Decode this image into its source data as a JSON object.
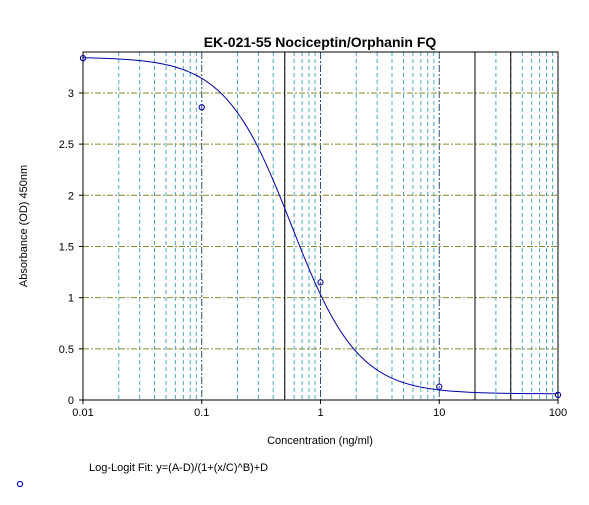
{
  "chart_data": {
    "type": "scatter",
    "title": "EK-021-55 Nociceptin/Orphanin FQ",
    "xlabel": "Concentration (ng/ml)",
    "ylabel": "Absorbance (OD) 450nm",
    "x_scale": "log",
    "xlim": [
      0.01,
      100
    ],
    "ylim": [
      0,
      3.4
    ],
    "x_ticks": [
      0.01,
      0.1,
      1,
      10,
      100
    ],
    "x_tick_labels": [
      "0.01",
      "0.1",
      "1",
      "10",
      "100"
    ],
    "y_ticks": [
      0,
      0.5,
      1,
      1.5,
      2,
      2.5,
      3
    ],
    "y_tick_labels": [
      "0",
      "0.5",
      "1",
      "1.5",
      "2",
      "2.5",
      "3"
    ],
    "grid": true,
    "series": [
      {
        "points": [
          {
            "x": 0.01,
            "y": 3.34
          },
          {
            "x": 0.1,
            "y": 2.86
          },
          {
            "x": 1,
            "y": 1.15
          },
          {
            "x": 10,
            "y": 0.13
          },
          {
            "x": 100,
            "y": 0.05
          }
        ],
        "fit": {
          "A": 3.35,
          "B": 1.55,
          "C": 0.57,
          "D": 0.06
        }
      }
    ],
    "fit_label": "Log-Logit Fit: y=(A-D)/(1+(x/C)^B)+D",
    "colors": {
      "curve": "#0000aa",
      "points": "#0000aa",
      "grid_major": "#2a4f7a",
      "grid_minor": "#4aa8c8",
      "grid_horizontal": "#8a8a2a"
    }
  }
}
